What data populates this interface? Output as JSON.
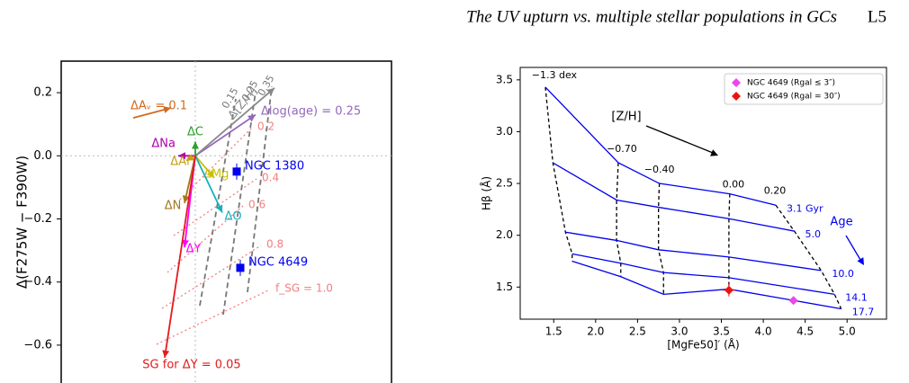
{
  "header": {
    "title": "The UV upturn vs. multiple stellar populations in GCs",
    "page": "L5"
  },
  "chart_data": [
    {
      "type": "vector",
      "ylabel": "Δ(F275W − F390W)",
      "ylim": [
        -0.72,
        0.3
      ],
      "yticks": [
        {
          "value": 0.2,
          "label": "0.2"
        },
        {
          "value": 0,
          "label": "0.0"
        },
        {
          "value": -0.2,
          "label": "−0.2"
        },
        {
          "value": -0.4,
          "label": "−0.4"
        },
        {
          "value": -0.6,
          "label": "−0.6"
        }
      ],
      "arrows": [
        {
          "label": "ΔAᵥ = 0.1",
          "color": "#d2691e",
          "y0": 0.12,
          "y1": 0.152
        },
        {
          "label": "Δlog(age) = 0.25",
          "color": "#9467bd",
          "y0": 0,
          "y1": 0.13
        },
        {
          "label": "Δ[Z/H]",
          "color": "#888888",
          "y0": 0,
          "y1": 0.215
        },
        {
          "label": "ΔC",
          "color": "#2ca02c",
          "y0": 0,
          "y1": 0.045
        },
        {
          "label": "ΔNa",
          "color": "#b000b0",
          "y0": 0,
          "y1": 0
        },
        {
          "label": "ΔAl",
          "color": "#c8a010",
          "y0": 0,
          "y1": -0.015
        },
        {
          "label": "ΔMg",
          "color": "#c8c000",
          "y0": 0,
          "y1": -0.07
        },
        {
          "label": "ΔO",
          "color": "#17b0c0",
          "y0": 0,
          "y1": -0.18
        },
        {
          "label": "ΔN",
          "color": "#a0781e",
          "y0": 0,
          "y1": -0.15
        },
        {
          "label": "ΔY",
          "color": "#ff00ff",
          "y0": 0,
          "y1": -0.29
        },
        {
          "label": "SG for ΔY = 0.05",
          "color": "#e41a1c",
          "y0": 0,
          "y1": -0.64
        }
      ],
      "points": [
        {
          "label": "NGC 1380",
          "y": -0.05,
          "color": "#0000ee"
        },
        {
          "label": "NGC 4649",
          "y": -0.355,
          "color": "#0000ee"
        }
      ],
      "fsg_labels": [
        "0.2",
        "0.4",
        "0.6",
        "0.8",
        "f_SG = 1.0"
      ],
      "zh_labels": [
        "0.15",
        "0.25",
        "0.35"
      ]
    },
    {
      "type": "grid",
      "xlabel": "[MgFe50]′ (Å)",
      "ylabel": "Hβ (Å)",
      "xlim": [
        1.1,
        5.47
      ],
      "ylim": [
        1.19,
        3.62
      ],
      "xticks": [
        {
          "value": 1.5,
          "label": "1.5"
        },
        {
          "value": 2,
          "label": "2.0"
        },
        {
          "value": 2.5,
          "label": "2.5"
        },
        {
          "value": 3,
          "label": "3.0"
        },
        {
          "value": 3.5,
          "label": "3.5"
        },
        {
          "value": 4,
          "label": "4.0"
        },
        {
          "value": 4.5,
          "label": "4.5"
        },
        {
          "value": 5,
          "label": "5.0"
        }
      ],
      "yticks": [
        {
          "value": 1.5,
          "label": "1.5"
        },
        {
          "value": 2,
          "label": "2.0"
        },
        {
          "value": 2.5,
          "label": "2.5"
        },
        {
          "value": 3,
          "label": "3.0"
        },
        {
          "value": 3.5,
          "label": "3.5"
        }
      ],
      "metallicity_labels": [
        "−1.3 dex",
        "−0.70",
        "−0.40",
        "0.00",
        "0.20"
      ],
      "metallicity_title": "[Z/H]",
      "age_title": "Age",
      "series": [
        {
          "name": "3.1 Gyr",
          "color": "#0000ee",
          "x": [
            1.4,
            2.27,
            2.76,
            3.6,
            4.15
          ],
          "values": [
            3.43,
            2.7,
            2.5,
            2.4,
            2.29
          ]
        },
        {
          "name": "5.0",
          "color": "#0000ee",
          "x": [
            1.49,
            2.25,
            2.75,
            3.59,
            4.37
          ],
          "values": [
            2.7,
            2.34,
            2.27,
            2.16,
            2.04
          ]
        },
        {
          "name": "10.0",
          "color": "#0000ee",
          "x": [
            1.64,
            2.25,
            2.75,
            3.59,
            4.69
          ],
          "values": [
            2.03,
            1.95,
            1.86,
            1.79,
            1.66
          ]
        },
        {
          "name": "14.1",
          "color": "#0000ee",
          "x": [
            1.72,
            2.3,
            2.81,
            3.59,
            4.85
          ],
          "values": [
            1.82,
            1.73,
            1.64,
            1.59,
            1.43
          ]
        },
        {
          "name": "17.7",
          "color": "#0000ee",
          "x": [
            1.72,
            2.3,
            2.81,
            3.59,
            4.93
          ],
          "values": [
            1.75,
            1.6,
            1.43,
            1.48,
            1.29
          ]
        }
      ],
      "points": [
        {
          "name": "NGC 4649 (Rgal ≤ 3″)",
          "color": "#ee44ee",
          "x": 4.36,
          "y": 1.37
        },
        {
          "name": "NGC 4649 (Rgal = 30″)",
          "color": "#ee1111",
          "x": 3.59,
          "y": 1.47
        }
      ]
    }
  ]
}
